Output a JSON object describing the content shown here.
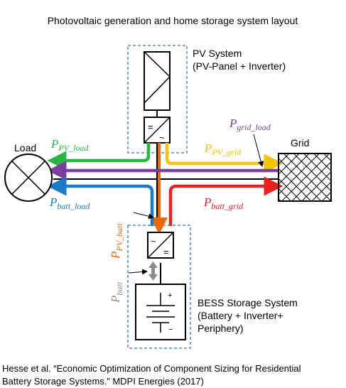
{
  "title": "Photovoltaic generation and home storage system layout",
  "labels": {
    "pv_system_line1": "PV System",
    "pv_system_line2": "(PV-Panel + Inverter)",
    "load": "Load",
    "grid": "Grid",
    "bess_line1": "BESS Storage System",
    "bess_line2": "(Battery + Inverter+",
    "bess_line3": "Periphery)"
  },
  "flows": {
    "pv_load": {
      "main": "P",
      "sub": "PV_load"
    },
    "grid_load": {
      "main": "P",
      "sub": "grid_load"
    },
    "pv_grid": {
      "main": "P",
      "sub": "PV_grid"
    },
    "batt_load": {
      "main": "P",
      "sub": "batt_load"
    },
    "batt_grid": {
      "main": "P",
      "sub": "batt_grid"
    },
    "pv_batt": {
      "main": "P",
      "sub": "PV_batt"
    },
    "batt": {
      "main": "P",
      "sub": "batt"
    }
  },
  "colors": {
    "pv_load": "#2db34a",
    "grid_load": "#7b3fa0",
    "pv_grid": "#f5c400",
    "batt_load": "#1a7ac6",
    "batt_grid": "#e8201f",
    "pv_batt": "#e56b10",
    "batt": "#8c8c8c",
    "dashed_box": "#2e75b6"
  },
  "caption": {
    "line1": "Hesse et al. “Economic Optimization of Component Sizing for Residential",
    "line2": "Battery Storage Systems.” MDPI Energies (2017)"
  }
}
